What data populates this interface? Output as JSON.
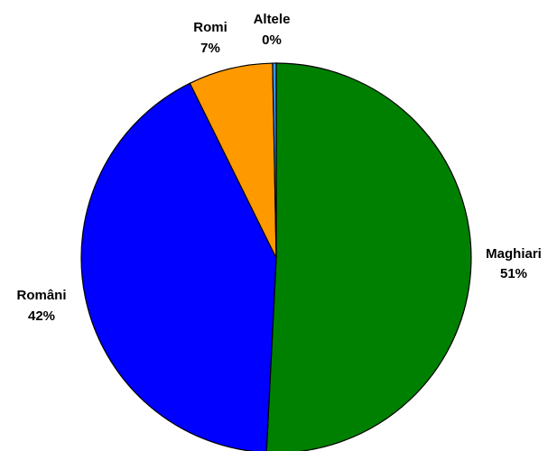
{
  "chart_data": {
    "type": "pie",
    "categories": [
      "Maghiari",
      "Români",
      "Romi",
      "Altele"
    ],
    "values": [
      50.8,
      41.9,
      7.0,
      0.3
    ],
    "percent_labels": [
      "51%",
      "42%",
      "7%",
      "0%"
    ],
    "colors": [
      "#008000",
      "#0000FF",
      "#FF9900",
      "#3399FF"
    ],
    "start_angle_deg": 0,
    "direction": "clockwise",
    "legend": "none",
    "title": ""
  }
}
